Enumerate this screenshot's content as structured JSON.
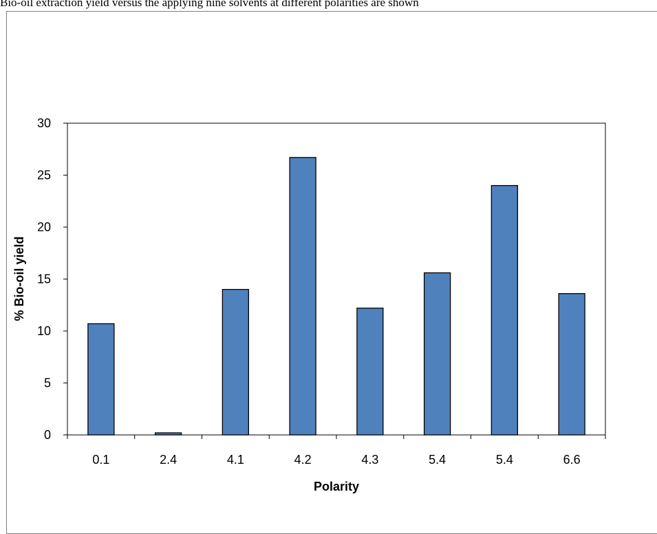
{
  "caption": "Bio-oil extraction yield versus the applying nine solvents at different polarities are shown",
  "chart_data": {
    "type": "bar",
    "categories": [
      "0.1",
      "2.4",
      "4.1",
      "4.2",
      "4.3",
      "5.4",
      "5.4",
      "6.6"
    ],
    "values": [
      10.7,
      0.2,
      14.0,
      26.7,
      12.2,
      15.6,
      24.0,
      13.6
    ],
    "title": "",
    "xlabel": "Polarity",
    "ylabel": "% Bio-oil yield",
    "ylim": [
      0,
      30
    ],
    "yticks": [
      0,
      5,
      10,
      15,
      20,
      25,
      30
    ],
    "grid": false,
    "legend": "none",
    "bar_color": "#4f81bd",
    "bar_edge_color": "#000000"
  }
}
